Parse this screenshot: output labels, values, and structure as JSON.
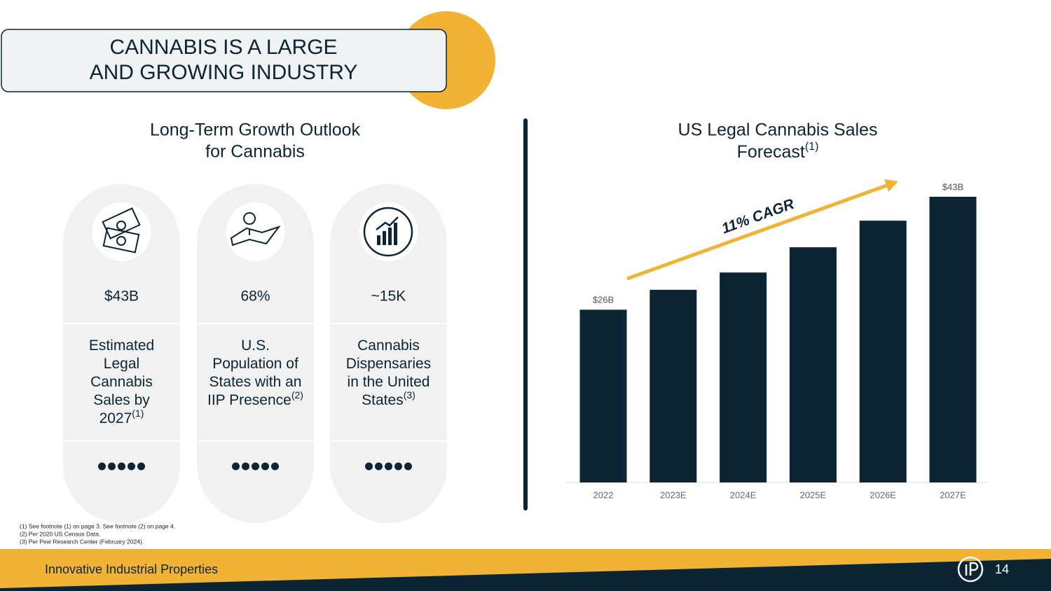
{
  "header": {
    "title": [
      "CANNABIS IS A LARGE",
      "AND GROWING INDUSTRY"
    ]
  },
  "left": {
    "title": [
      "Long-Term Growth Outlook",
      "for Cannabis"
    ],
    "cards": [
      {
        "value": "$43B",
        "label": [
          "Estimated",
          "Legal",
          "Cannabis",
          "Sales by",
          "2027"
        ],
        "note": "(1)"
      },
      {
        "value": "68%",
        "label": [
          "U.S.",
          "Population of",
          "States with an",
          "IIP Presence"
        ],
        "note": "(2)"
      },
      {
        "value": "~15K",
        "label": [
          "Cannabis",
          "Dispensaries",
          "in the United",
          "States"
        ],
        "note": "(3)"
      }
    ]
  },
  "chart_data": {
    "type": "bar",
    "title": [
      "US Legal Cannabis Sales",
      "Forecast"
    ],
    "title_note": "(1)",
    "annotation": "11% CAGR",
    "categories": [
      "2022",
      "2023E",
      "2024E",
      "2025E",
      "2026E",
      "2027E"
    ],
    "values": [
      26,
      29,
      31.6,
      35.4,
      39.4,
      43
    ],
    "value_labels": [
      "$26B",
      null,
      null,
      null,
      null,
      "$43B"
    ],
    "color": "#0b2535"
  },
  "footnotes": [
    "(1)   See footnote (1) on page 3. See footnote (2) on page 4.",
    "(2)   Per 2020 US Census Data.",
    "(3)   Per Pew Research Center  (February 2024)."
  ],
  "footer": {
    "company": "Innovative Industrial Properties",
    "page": "14"
  }
}
